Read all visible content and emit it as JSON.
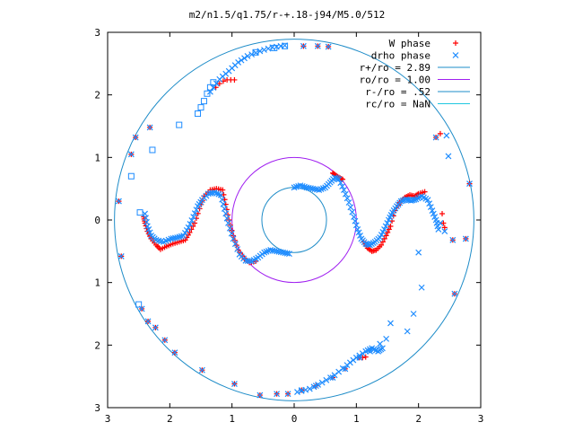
{
  "chart_data": {
    "type": "scatter",
    "title": "m2/n1.5/q1.75/r-+.18-j94/M5.0/512",
    "xlabel": "",
    "ylabel": "",
    "xlim": [
      -3,
      3
    ],
    "ylim": [
      -3,
      3
    ],
    "x_tick_labels": [
      "3",
      "2",
      "1",
      "0",
      "1",
      "2",
      "3"
    ],
    "y_tick_labels": [
      "3",
      "2",
      "1",
      "0",
      "1",
      "2",
      "3"
    ],
    "grid": false,
    "legend_position": "top-right",
    "series": [
      {
        "name": "W phase",
        "marker": "plus",
        "color": "#ff0000",
        "points": [
          [
            -2.82,
            0.3
          ],
          [
            -2.78,
            -0.58
          ],
          [
            -2.62,
            1.05
          ],
          [
            -2.55,
            1.32
          ],
          [
            -2.45,
            -1.42
          ],
          [
            -2.35,
            -1.62
          ],
          [
            -2.32,
            1.48
          ],
          [
            -2.23,
            -1.72
          ],
          [
            -2.08,
            -1.92
          ],
          [
            -1.92,
            -2.12
          ],
          [
            -1.48,
            -2.4
          ],
          [
            -0.96,
            -2.62
          ],
          [
            -1.26,
            2.12
          ],
          [
            -1.2,
            2.18
          ],
          [
            -1.14,
            2.22
          ],
          [
            -1.08,
            2.24
          ],
          [
            -1.02,
            2.24
          ],
          [
            -0.96,
            2.24
          ],
          [
            -0.55,
            -2.8
          ],
          [
            -0.28,
            -2.78
          ],
          [
            -0.1,
            -2.78
          ],
          [
            0.15,
            2.78
          ],
          [
            0.38,
            2.78
          ],
          [
            0.55,
            2.77
          ],
          [
            0.12,
            -2.72
          ],
          [
            0.35,
            -2.65
          ],
          [
            0.62,
            -2.52
          ],
          [
            0.82,
            -2.38
          ],
          [
            1.05,
            -2.2
          ],
          [
            1.1,
            -2.2
          ],
          [
            1.15,
            -2.19
          ],
          [
            2.28,
            1.32
          ],
          [
            2.35,
            1.38
          ],
          [
            2.38,
            0.1
          ],
          [
            2.4,
            -0.05
          ],
          [
            2.42,
            -0.12
          ],
          [
            2.55,
            -0.32
          ],
          [
            2.58,
            -1.18
          ],
          [
            2.82,
            0.58
          ],
          [
            2.76,
            -0.3
          ]
        ],
        "curve": [
          [
            -2.42,
            0.05
          ],
          [
            -2.4,
            -0.05
          ],
          [
            -2.36,
            -0.18
          ],
          [
            -2.3,
            -0.3
          ],
          [
            -2.22,
            -0.4
          ],
          [
            -2.15,
            -0.47
          ],
          [
            -2.05,
            -0.42
          ],
          [
            -1.95,
            -0.38
          ],
          [
            -1.85,
            -0.35
          ],
          [
            -1.75,
            -0.32
          ],
          [
            -1.68,
            -0.2
          ],
          [
            -1.6,
            -0.05
          ],
          [
            -1.52,
            0.18
          ],
          [
            -1.45,
            0.38
          ],
          [
            -1.35,
            0.48
          ],
          [
            -1.25,
            0.5
          ],
          [
            -1.15,
            0.48
          ],
          [
            -1.1,
            0.25
          ],
          [
            -1.05,
            0.0
          ],
          [
            -0.98,
            -0.25
          ],
          [
            -0.9,
            -0.48
          ],
          [
            -0.8,
            -0.62
          ],
          [
            -0.72,
            -0.68
          ],
          [
            -0.62,
            -0.66
          ],
          [
            0.62,
            0.75
          ],
          [
            0.66,
            0.72
          ],
          [
            0.72,
            0.68
          ],
          [
            0.78,
            0.65
          ],
          [
            1.12,
            -0.35
          ],
          [
            1.18,
            -0.45
          ],
          [
            1.25,
            -0.5
          ],
          [
            1.32,
            -0.48
          ],
          [
            1.4,
            -0.4
          ],
          [
            1.48,
            -0.25
          ],
          [
            1.55,
            -0.1
          ],
          [
            1.62,
            0.15
          ],
          [
            1.7,
            0.28
          ],
          [
            1.78,
            0.36
          ],
          [
            1.86,
            0.4
          ],
          [
            1.94,
            0.38
          ],
          [
            2.0,
            0.42
          ],
          [
            2.1,
            0.45
          ]
        ]
      },
      {
        "name": "drho phase",
        "marker": "cross_and_square",
        "color": "#1e8cff",
        "points": [
          [
            -2.82,
            0.3
          ],
          [
            -2.78,
            -0.58
          ],
          [
            -2.62,
            1.05
          ],
          [
            -2.55,
            1.32
          ],
          [
            -2.45,
            -1.42
          ],
          [
            -2.35,
            -1.62
          ],
          [
            -2.32,
            1.48
          ],
          [
            -2.23,
            -1.72
          ],
          [
            -2.08,
            -1.92
          ],
          [
            -1.92,
            -2.12
          ],
          [
            -1.48,
            -2.4
          ],
          [
            -0.96,
            -2.62
          ],
          [
            -0.55,
            -2.8
          ],
          [
            -0.28,
            -2.78
          ],
          [
            -0.1,
            -2.78
          ],
          [
            0.15,
            2.78
          ],
          [
            0.38,
            2.78
          ],
          [
            0.55,
            2.77
          ],
          [
            0.12,
            -2.72
          ],
          [
            0.35,
            -2.65
          ],
          [
            0.62,
            -2.52
          ],
          [
            0.82,
            -2.38
          ],
          [
            1.05,
            -2.2
          ],
          [
            1.22,
            -2.1
          ],
          [
            1.38,
            -1.98
          ],
          [
            1.48,
            -1.9
          ],
          [
            1.55,
            -1.65
          ],
          [
            2.0,
            -0.52
          ],
          [
            2.28,
            1.32
          ],
          [
            2.45,
            1.35
          ],
          [
            2.35,
            -0.05
          ],
          [
            2.42,
            -0.18
          ],
          [
            2.55,
            -0.32
          ],
          [
            2.58,
            -1.18
          ],
          [
            2.82,
            0.58
          ],
          [
            2.76,
            -0.3
          ],
          [
            2.48,
            1.02
          ],
          [
            1.92,
            -1.5
          ],
          [
            1.82,
            -1.78
          ],
          [
            2.05,
            -1.08
          ]
        ],
        "squares": [
          [
            -2.48,
            0.12
          ],
          [
            -2.62,
            0.7
          ],
          [
            -2.28,
            1.12
          ],
          [
            -1.85,
            1.52
          ],
          [
            -1.55,
            1.7
          ],
          [
            -1.5,
            1.8
          ],
          [
            -1.45,
            1.9
          ],
          [
            -1.4,
            2.02
          ],
          [
            -1.35,
            2.12
          ],
          [
            -1.3,
            2.2
          ],
          [
            -0.62,
            2.68
          ],
          [
            -0.32,
            2.75
          ],
          [
            -0.15,
            2.78
          ],
          [
            -2.5,
            -1.35
          ]
        ],
        "curve": [
          [
            -2.4,
            0.1
          ],
          [
            -2.36,
            -0.1
          ],
          [
            -2.3,
            -0.25
          ],
          [
            -2.22,
            -0.32
          ],
          [
            -2.1,
            -0.35
          ],
          [
            -1.98,
            -0.3
          ],
          [
            -1.88,
            -0.28
          ],
          [
            -1.78,
            -0.25
          ],
          [
            -1.7,
            -0.12
          ],
          [
            -1.62,
            0.05
          ],
          [
            -1.55,
            0.22
          ],
          [
            -1.48,
            0.32
          ],
          [
            -1.38,
            0.42
          ],
          [
            -1.28,
            0.44
          ],
          [
            -1.18,
            0.4
          ],
          [
            -1.12,
            0.18
          ],
          [
            -1.06,
            -0.05
          ],
          [
            -0.98,
            -0.3
          ],
          [
            -0.88,
            -0.55
          ],
          [
            -0.78,
            -0.65
          ],
          [
            -0.68,
            -0.66
          ],
          [
            -0.58,
            -0.6
          ],
          [
            -0.48,
            -0.52
          ],
          [
            -0.38,
            -0.48
          ],
          [
            -0.28,
            -0.5
          ],
          [
            -0.18,
            -0.52
          ],
          [
            -0.08,
            -0.54
          ],
          [
            0.0,
            0.52
          ],
          [
            0.1,
            0.55
          ],
          [
            0.2,
            0.52
          ],
          [
            0.3,
            0.5
          ],
          [
            0.4,
            0.48
          ],
          [
            0.5,
            0.52
          ],
          [
            0.58,
            0.6
          ],
          [
            0.65,
            0.68
          ],
          [
            0.72,
            0.65
          ],
          [
            0.8,
            0.48
          ],
          [
            0.88,
            0.28
          ],
          [
            0.96,
            0.05
          ],
          [
            1.02,
            -0.15
          ],
          [
            1.08,
            -0.3
          ],
          [
            1.15,
            -0.38
          ],
          [
            1.22,
            -0.4
          ],
          [
            1.3,
            -0.35
          ],
          [
            1.38,
            -0.28
          ],
          [
            1.45,
            -0.15
          ],
          [
            1.52,
            0.0
          ],
          [
            1.58,
            0.12
          ],
          [
            1.65,
            0.22
          ],
          [
            1.72,
            0.3
          ],
          [
            1.8,
            0.33
          ],
          [
            1.88,
            0.31
          ],
          [
            1.96,
            0.33
          ],
          [
            2.05,
            0.38
          ],
          [
            2.15,
            0.32
          ],
          [
            2.22,
            0.15
          ],
          [
            2.28,
            0.0
          ],
          [
            2.32,
            -0.15
          ],
          [
            -1.35,
            2.05
          ],
          [
            -1.2,
            2.25
          ],
          [
            -1.05,
            2.38
          ],
          [
            -0.9,
            2.52
          ],
          [
            -0.75,
            2.62
          ],
          [
            -0.55,
            2.7
          ],
          [
            -0.35,
            2.76
          ],
          [
            -0.15,
            2.79
          ],
          [
            0.05,
            -2.75
          ],
          [
            0.25,
            -2.7
          ],
          [
            0.45,
            -2.6
          ],
          [
            0.65,
            -2.48
          ],
          [
            0.85,
            -2.32
          ],
          [
            1.0,
            -2.2
          ],
          [
            1.15,
            -2.1
          ],
          [
            1.25,
            -2.05
          ],
          [
            1.35,
            -2.1
          ],
          [
            1.42,
            -2.05
          ]
        ]
      },
      {
        "name": "r+/ro = 2.89",
        "type": "circle",
        "radius": 2.89,
        "color": "#1e8cc8"
      },
      {
        "name": "ro/ro = 1.00",
        "type": "circle",
        "radius": 1.0,
        "color": "#a020f0"
      },
      {
        "name": "r-/ro = .52",
        "type": "circle",
        "radius": 0.52,
        "color": "#1e8cc8"
      },
      {
        "name": "rc/ro = NaN",
        "type": "circle",
        "radius": null,
        "color": "#20c8e0"
      }
    ]
  }
}
